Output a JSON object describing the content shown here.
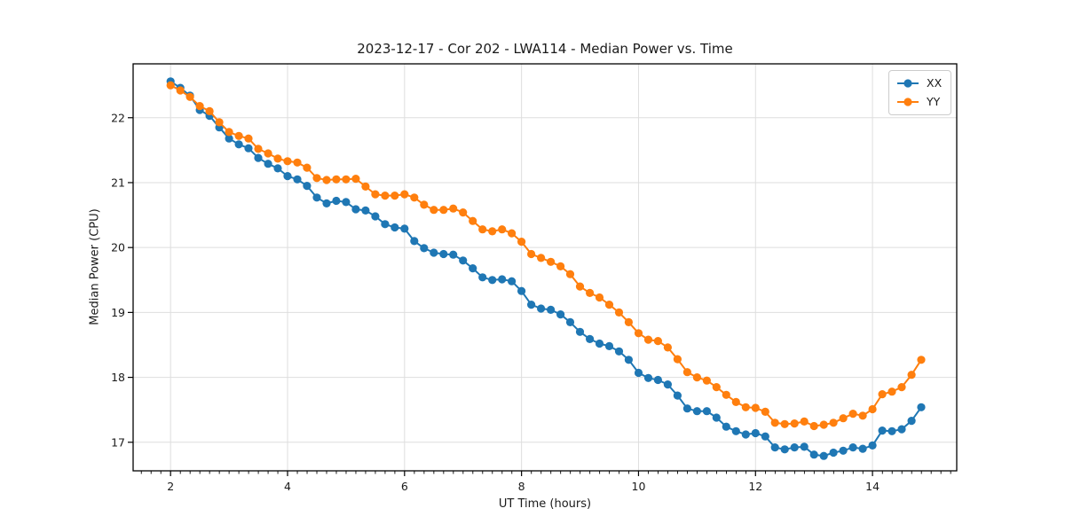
{
  "figure": {
    "title": "2023-12-17 - Cor 202 - LWA114 - Median Power vs. Time",
    "xlabel": "UT Time (hours)",
    "ylabel": "Median Power (CPU)"
  },
  "legend": {
    "position": "upper right",
    "items": [
      {
        "label": "XX",
        "color": "#1f77b4"
      },
      {
        "label": "YY",
        "color": "#ff7f0e"
      }
    ]
  },
  "chart_data": {
    "type": "line",
    "title": "2023-12-17 - Cor 202 - LWA114 - Median Power vs. Time",
    "xlabel": "UT Time (hours)",
    "ylabel": "Median Power (CPU)",
    "xlim": [
      1.36,
      15.44
    ],
    "ylim": [
      16.56,
      22.83
    ],
    "xticks": [
      2,
      4,
      6,
      8,
      10,
      12,
      14
    ],
    "yticks": [
      17,
      18,
      19,
      20,
      21,
      22
    ],
    "x_minor_step": 0.1667,
    "grid": true,
    "legend_position": "upper right",
    "marker": "circle",
    "x": [
      2,
      2.167,
      2.333,
      2.5,
      2.667,
      2.833,
      3,
      3.167,
      3.333,
      3.5,
      3.667,
      3.833,
      4,
      4.167,
      4.333,
      4.5,
      4.667,
      4.833,
      5,
      5.167,
      5.333,
      5.5,
      5.667,
      5.833,
      6,
      6.167,
      6.333,
      6.5,
      6.667,
      6.833,
      7,
      7.167,
      7.333,
      7.5,
      7.667,
      7.833,
      8,
      8.167,
      8.333,
      8.5,
      8.667,
      8.833,
      9,
      9.167,
      9.333,
      9.5,
      9.667,
      9.833,
      10,
      10.167,
      10.333,
      10.5,
      10.667,
      10.833,
      11,
      11.167,
      11.333,
      11.5,
      11.667,
      11.833,
      12,
      12.167,
      12.333,
      12.5,
      12.667,
      12.833,
      13,
      13.167,
      13.333,
      13.5,
      13.667,
      13.833,
      14,
      14.167,
      14.333,
      14.5,
      14.667,
      14.833
    ],
    "series": [
      {
        "name": "XX",
        "color": "#1f77b4",
        "values": [
          22.56,
          22.46,
          22.34,
          22.12,
          22.03,
          21.85,
          21.68,
          21.59,
          21.53,
          21.38,
          21.29,
          21.22,
          21.1,
          21.05,
          20.95,
          20.77,
          20.68,
          20.72,
          20.7,
          20.59,
          20.57,
          20.48,
          20.36,
          20.31,
          20.29,
          20.1,
          19.99,
          19.92,
          19.9,
          19.89,
          19.8,
          19.68,
          19.54,
          19.5,
          19.51,
          19.48,
          19.33,
          19.12,
          19.06,
          19.04,
          18.97,
          18.85,
          18.7,
          18.59,
          18.52,
          18.48,
          18.4,
          18.27,
          18.07,
          17.99,
          17.96,
          17.89,
          17.72,
          17.52,
          17.48,
          17.48,
          17.38,
          17.24,
          17.17,
          17.12,
          17.14,
          17.09,
          16.92,
          16.89,
          16.92,
          16.93,
          16.81,
          16.79,
          16.84,
          16.87,
          16.92,
          16.9,
          16.95,
          17.18,
          17.17,
          17.2,
          17.33,
          17.54
        ]
      },
      {
        "name": "YY",
        "color": "#ff7f0e",
        "values": [
          22.5,
          22.42,
          22.32,
          22.18,
          22.1,
          21.93,
          21.78,
          21.72,
          21.68,
          21.52,
          21.45,
          21.37,
          21.33,
          21.31,
          21.23,
          21.07,
          21.04,
          21.05,
          21.05,
          21.06,
          20.94,
          20.82,
          20.8,
          20.8,
          20.82,
          20.77,
          20.66,
          20.58,
          20.58,
          20.6,
          20.54,
          20.41,
          20.28,
          20.25,
          20.28,
          20.22,
          20.09,
          19.9,
          19.84,
          19.78,
          19.71,
          19.59,
          19.4,
          19.3,
          19.23,
          19.12,
          19.0,
          18.85,
          18.68,
          18.58,
          18.56,
          18.46,
          18.28,
          18.08,
          18.0,
          17.95,
          17.85,
          17.73,
          17.62,
          17.54,
          17.53,
          17.47,
          17.3,
          17.28,
          17.29,
          17.32,
          17.25,
          17.27,
          17.3,
          17.37,
          17.44,
          17.41,
          17.51,
          17.74,
          17.78,
          17.85,
          18.04,
          18.27
        ]
      }
    ]
  }
}
